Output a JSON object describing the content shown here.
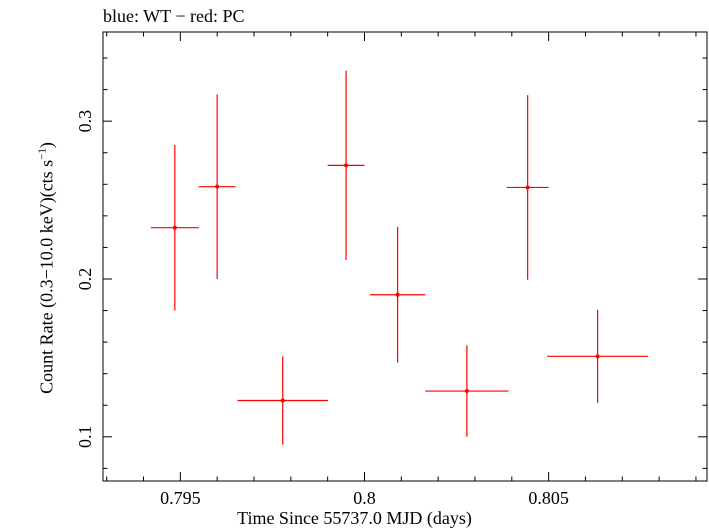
{
  "chart_data": {
    "type": "scatter",
    "title": "blue: WT − red: PC",
    "xlabel": "Time Since 55737.0 MJD (days)",
    "ylabel": {
      "main": "Count Rate (0.3−10.0 keV)(cts s",
      "sup": "−1",
      "end": ")"
    },
    "xlim": [
      0.7929,
      0.8093
    ],
    "ylim": [
      0.072,
      0.3565
    ],
    "xticks": [
      0.795,
      0.8,
      0.805
    ],
    "xtick_labels": [
      "0.795",
      "0.8",
      "0.805"
    ],
    "yticks": [
      0.1,
      0.2,
      0.3
    ],
    "ytick_labels": [
      "0.1",
      "0.2",
      "0.3"
    ],
    "grid": false,
    "series": [
      {
        "color": "#ff0000",
        "points": [
          {
            "x": 0.79485,
            "y": 0.2325,
            "xerr": 0.00065,
            "yerr_low": 0.0525,
            "yerr_high": 0.0525
          },
          {
            "x": 0.796,
            "y": 0.2585,
            "xerr": 0.0005,
            "yerr_low": 0.0585,
            "yerr_high": 0.0585
          },
          {
            "x": 0.79778,
            "y": 0.123,
            "xerr": 0.00123,
            "yerr_low": 0.028,
            "yerr_high": 0.028
          },
          {
            "x": 0.7995,
            "y": 0.272,
            "xerr": 0.0005,
            "yerr_low": 0.06,
            "yerr_high": 0.06
          },
          {
            "x": 0.8009,
            "y": 0.19,
            "xerr": 0.00075,
            "yerr_low": 0.043,
            "yerr_high": 0.043
          },
          {
            "x": 0.80278,
            "y": 0.129,
            "xerr": 0.00113,
            "yerr_low": 0.029,
            "yerr_high": 0.029
          },
          {
            "x": 0.80443,
            "y": 0.258,
            "xerr": 0.00057,
            "yerr_low": 0.0585,
            "yerr_high": 0.0585
          },
          {
            "x": 0.80633,
            "y": 0.151,
            "xerr": 0.00137,
            "yerr_low": 0.0295,
            "yerr_high": 0.0295
          }
        ]
      }
    ]
  }
}
